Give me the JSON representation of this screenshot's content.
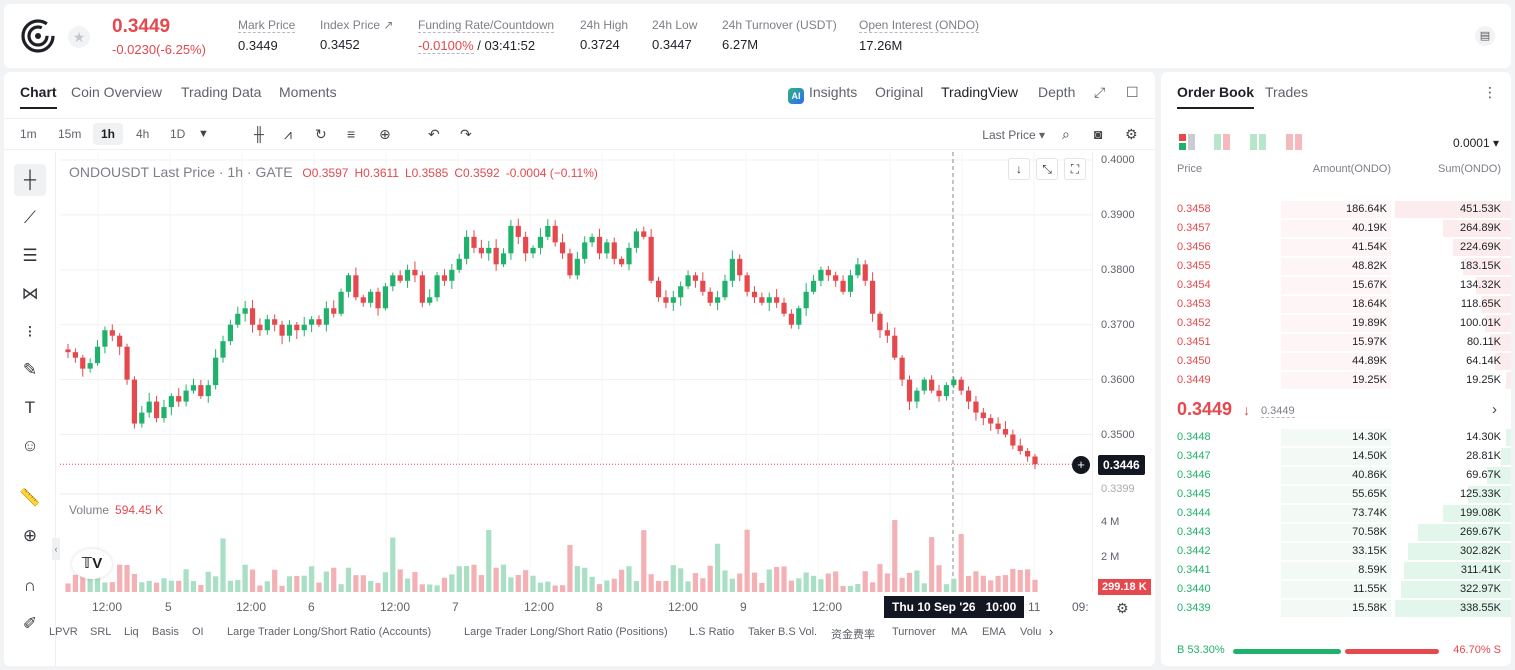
{
  "header": {
    "price": "0.3449",
    "change": "-0.0230(-6.25%)",
    "stats": [
      {
        "label": "Mark Price",
        "value": "0.3449"
      },
      {
        "label": "Index Price ↗",
        "value": "0.3452"
      },
      {
        "label": "Funding Rate/Countdown",
        "value": "-0.0100%",
        "value2": "/ 03:41:52"
      },
      {
        "label": "24h High",
        "value": "0.3724"
      },
      {
        "label": "24h Low",
        "value": "0.3447"
      },
      {
        "label": "24h Turnover (USDT)",
        "value": "6.27M"
      },
      {
        "label": "Open Interest (ONDO)",
        "value": "17.26M"
      }
    ]
  },
  "chart_tabs": [
    "Chart",
    "Coin Overview",
    "Trading Data",
    "Moments"
  ],
  "view_tabs": {
    "insights": "Insights",
    "original": "Original",
    "tradingview": "TradingView",
    "depth": "Depth"
  },
  "timeframes": [
    "1m",
    "15m",
    "1h",
    "4h",
    "1D"
  ],
  "last_price_select": "Last Price ▾",
  "chart": {
    "title": "ONDOUSDT Last Price · 1h · GATE",
    "ohlc": {
      "o": "O0.3597",
      "h": "H0.3611",
      "l": "L0.3585",
      "c": "C0.3592",
      "chg": "-0.0004 (−0.11%)"
    },
    "volume_label": "Volume",
    "volume_value": "594.45 K",
    "y_ticks": [
      "0.4000",
      "0.3900",
      "0.3800",
      "0.3700",
      "0.3600",
      "0.3500",
      "0.3399"
    ],
    "vol_ticks": [
      "4 M",
      "2 M"
    ],
    "last_price_tag": "0.3446",
    "vol_tag": "299.18 K",
    "x_labels": [
      "12:00",
      "5",
      "12:00",
      "6",
      "12:00",
      "7",
      "12:00",
      "8",
      "12:00",
      "9",
      "12:00",
      "11",
      "09:"
    ],
    "crosshair_date": "Thu 10 Sep '26",
    "crosshair_time": "10:00"
  },
  "indicators": [
    "LPVR",
    "SRL",
    "Liq",
    "Basis",
    "OI",
    "Large Trader Long/Short Ratio (Accounts)",
    "Large Trader Long/Short Ratio (Positions)",
    "L.S Ratio",
    "Taker B.S Vol.",
    "资金费率",
    "Turnover",
    "MA",
    "EMA",
    "Volu"
  ],
  "order_book": {
    "tabs": [
      "Order Book",
      "Trades"
    ],
    "precision": "0.0001",
    "headers": {
      "price": "Price",
      "amount": "Amount(ONDO)",
      "sum": "Sum(ONDO)"
    },
    "asks": [
      {
        "price": "0.3458",
        "amount": "186.64K",
        "sum": "451.53K",
        "depth": 1.0,
        "amt": 0.41
      },
      {
        "price": "0.3457",
        "amount": "40.19K",
        "sum": "264.89K",
        "depth": 0.59,
        "amt": 0.09
      },
      {
        "price": "0.3456",
        "amount": "41.54K",
        "sum": "224.69K",
        "depth": 0.5,
        "amt": 0.09
      },
      {
        "price": "0.3455",
        "amount": "48.82K",
        "sum": "183.15K",
        "depth": 0.41,
        "amt": 0.11
      },
      {
        "price": "0.3454",
        "amount": "15.67K",
        "sum": "134.32K",
        "depth": 0.3,
        "amt": 0.03
      },
      {
        "price": "0.3453",
        "amount": "18.64K",
        "sum": "118.65K",
        "depth": 0.26,
        "amt": 0.04
      },
      {
        "price": "0.3452",
        "amount": "19.89K",
        "sum": "100.01K",
        "depth": 0.22,
        "amt": 0.04
      },
      {
        "price": "0.3451",
        "amount": "15.97K",
        "sum": "80.11K",
        "depth": 0.18,
        "amt": 0.04
      },
      {
        "price": "0.3450",
        "amount": "44.89K",
        "sum": "64.14K",
        "depth": 0.14,
        "amt": 0.1
      },
      {
        "price": "0.3449",
        "amount": "19.25K",
        "sum": "19.25K",
        "depth": 0.04,
        "amt": 0.04
      }
    ],
    "mid_price": "0.3449",
    "mid_arrow": "🡓",
    "mid_ref": "0.3449",
    "bids": [
      {
        "price": "0.3448",
        "amount": "14.30K",
        "sum": "14.30K",
        "depth": 0.04,
        "amt": 0.04
      },
      {
        "price": "0.3447",
        "amount": "14.50K",
        "sum": "28.81K",
        "depth": 0.09,
        "amt": 0.04
      },
      {
        "price": "0.3446",
        "amount": "40.86K",
        "sum": "69.67K",
        "depth": 0.21,
        "amt": 0.12
      },
      {
        "price": "0.3445",
        "amount": "55.65K",
        "sum": "125.33K",
        "depth": 0.37,
        "amt": 0.16
      },
      {
        "price": "0.3444",
        "amount": "73.74K",
        "sum": "199.08K",
        "depth": 0.59,
        "amt": 0.22
      },
      {
        "price": "0.3443",
        "amount": "70.58K",
        "sum": "269.67K",
        "depth": 0.8,
        "amt": 0.21
      },
      {
        "price": "0.3442",
        "amount": "33.15K",
        "sum": "302.82K",
        "depth": 0.89,
        "amt": 0.1
      },
      {
        "price": "0.3441",
        "amount": "8.59K",
        "sum": "311.41K",
        "depth": 0.92,
        "amt": 0.03
      },
      {
        "price": "0.3440",
        "amount": "11.55K",
        "sum": "322.97K",
        "depth": 0.95,
        "amt": 0.03
      },
      {
        "price": "0.3439",
        "amount": "15.58K",
        "sum": "338.55K",
        "depth": 1.0,
        "amt": 0.05
      }
    ],
    "buy_ratio": "B 53.30%",
    "sell_ratio": "46.70% S"
  },
  "colors": {
    "up": "#20b26c",
    "down": "#e5484d",
    "text": "#1e2026"
  },
  "chart_data": {
    "type": "candlestick",
    "title": "ONDOUSDT Last Price · 1h · GATE",
    "ylim": [
      0.3399,
      0.4
    ],
    "y_ticks": [
      0.4,
      0.39,
      0.38,
      0.37,
      0.36,
      0.35,
      0.3399
    ],
    "closes": [
      0.365,
      0.364,
      0.362,
      0.363,
      0.366,
      0.369,
      0.368,
      0.366,
      0.36,
      0.352,
      0.354,
      0.356,
      0.353,
      0.355,
      0.357,
      0.356,
      0.358,
      0.359,
      0.357,
      0.359,
      0.364,
      0.367,
      0.37,
      0.372,
      0.373,
      0.37,
      0.369,
      0.371,
      0.37,
      0.368,
      0.37,
      0.369,
      0.37,
      0.371,
      0.37,
      0.373,
      0.372,
      0.376,
      0.379,
      0.375,
      0.374,
      0.376,
      0.373,
      0.377,
      0.379,
      0.378,
      0.38,
      0.379,
      0.374,
      0.375,
      0.379,
      0.378,
      0.38,
      0.382,
      0.386,
      0.384,
      0.383,
      0.384,
      0.381,
      0.383,
      0.388,
      0.386,
      0.383,
      0.384,
      0.386,
      0.388,
      0.385,
      0.383,
      0.379,
      0.382,
      0.385,
      0.386,
      0.383,
      0.385,
      0.382,
      0.381,
      0.384,
      0.387,
      0.386,
      0.378,
      0.375,
      0.374,
      0.375,
      0.377,
      0.379,
      0.378,
      0.376,
      0.374,
      0.375,
      0.378,
      0.382,
      0.379,
      0.376,
      0.375,
      0.374,
      0.375,
      0.374,
      0.372,
      0.37,
      0.373,
      0.376,
      0.378,
      0.38,
      0.379,
      0.378,
      0.376,
      0.379,
      0.381,
      0.378,
      0.372,
      0.369,
      0.368,
      0.364,
      0.36,
      0.356,
      0.358,
      0.36,
      0.358,
      0.357,
      0.359,
      0.36,
      0.358,
      0.356,
      0.354,
      0.353,
      0.352,
      0.351,
      0.35,
      0.348,
      0.347,
      0.346,
      0.3446
    ],
    "volume_ylim": [
      0,
      5000000
    ],
    "volume_ticks": [
      "4 M",
      "2 M"
    ]
  }
}
